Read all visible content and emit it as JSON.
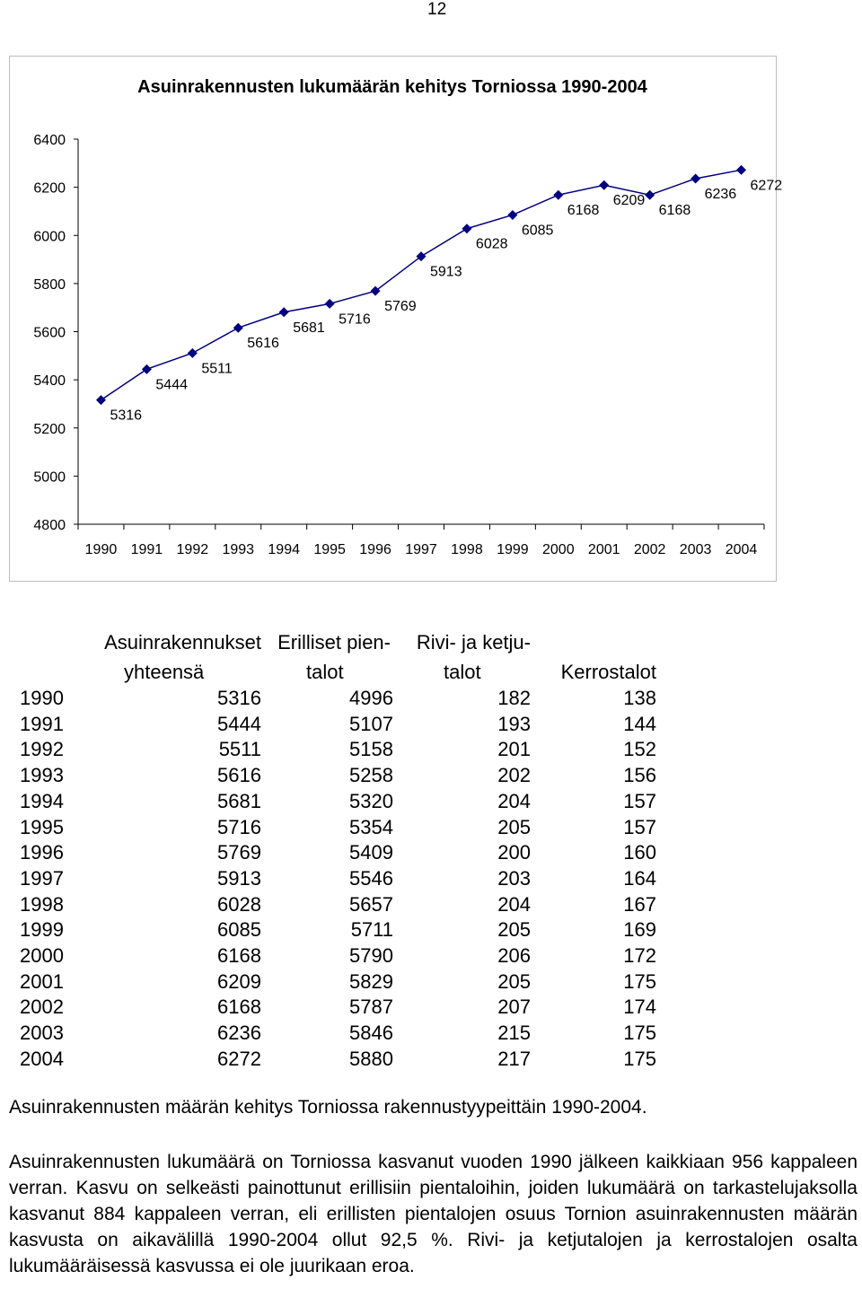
{
  "page": {
    "number": "12"
  },
  "chart_data": {
    "type": "line",
    "title": "Asuinrakennusten lukumäärän kehitys Torniossa 1990-2004",
    "xlabel": "",
    "ylabel": "",
    "categories": [
      "1990",
      "1991",
      "1992",
      "1993",
      "1994",
      "1995",
      "1996",
      "1997",
      "1998",
      "1999",
      "2000",
      "2001",
      "2002",
      "2003",
      "2004"
    ],
    "series": [
      {
        "values": [
          5316,
          5444,
          5511,
          5616,
          5681,
          5716,
          5769,
          5913,
          6028,
          6085,
          6168,
          6209,
          6168,
          6236,
          6272
        ]
      }
    ],
    "ylim": [
      4800,
      6400
    ],
    "yticks": [
      "6400",
      "6200",
      "6000",
      "5800",
      "5600",
      "5400",
      "5200",
      "5000",
      "4800"
    ],
    "grid": false,
    "legend": "none",
    "line_color": "#000080",
    "marker": "diamond"
  },
  "table": {
    "header": {
      "col1_line1": "Asuinrakennukset",
      "col1_line2": "yhteensä",
      "col2_line1": "Erilliset pien-",
      "col2_line2": "talot",
      "col3_line1": "Rivi- ja ketju-",
      "col3_line2": "talot",
      "col4": "Kerrostalot"
    },
    "rows": [
      [
        "1990",
        "5316",
        "4996",
        "182",
        "138"
      ],
      [
        "1991",
        "5444",
        "5107",
        "193",
        "144"
      ],
      [
        "1992",
        "5511",
        "5158",
        "201",
        "152"
      ],
      [
        "1993",
        "5616",
        "5258",
        "202",
        "156"
      ],
      [
        "1994",
        "5681",
        "5320",
        "204",
        "157"
      ],
      [
        "1995",
        "5716",
        "5354",
        "205",
        "157"
      ],
      [
        "1996",
        "5769",
        "5409",
        "200",
        "160"
      ],
      [
        "1997",
        "5913",
        "5546",
        "203",
        "164"
      ],
      [
        "1998",
        "6028",
        "5657",
        "204",
        "167"
      ],
      [
        "1999",
        "6085",
        "5711",
        "205",
        "169"
      ],
      [
        "2000",
        "6168",
        "5790",
        "206",
        "172"
      ],
      [
        "2001",
        "6209",
        "5829",
        "205",
        "175"
      ],
      [
        "2002",
        "6168",
        "5787",
        "207",
        "174"
      ],
      [
        "2003",
        "6236",
        "5846",
        "215",
        "175"
      ],
      [
        "2004",
        "6272",
        "5880",
        "217",
        "175"
      ]
    ]
  },
  "caption": "Asuinrakennusten määrän kehitys Torniossa rakennustyypeittäin 1990-2004.",
  "paragraph": "Asuinrakennusten lukumäärä on Torniossa kasvanut vuoden 1990 jälkeen kaikkiaan 956 kappaleen verran. Kasvu on selkeästi painottunut erillisiin pientaloihin, joiden lukumäärä on tarkastelujaksolla kasvanut 884 kappaleen verran, eli erillisten pientalojen osuus Tornion asuinrakennusten määrän kasvusta on aikavälillä 1990-2004 ollut 92,5 %. Rivi- ja ketjutalojen ja kerrostalojen osalta lukumääräisessä kasvussa ei ole juurikaan eroa."
}
